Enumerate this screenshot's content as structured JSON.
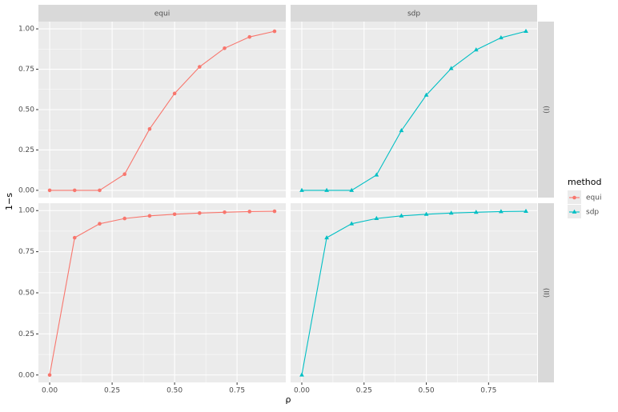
{
  "chart_data": {
    "type": "line",
    "x_label": "ρ",
    "y_label": "1−s",
    "legend_title": "method",
    "x": [
      0,
      0.1,
      0.2,
      0.3,
      0.4,
      0.5,
      0.6,
      0.7,
      0.8,
      0.9
    ],
    "xlim": [
      -0.045,
      0.945
    ],
    "xticks": [
      {
        "value": 0,
        "label": "0.00"
      },
      {
        "value": 0.25,
        "label": "0.25"
      },
      {
        "value": 0.5,
        "label": "0.50"
      },
      {
        "value": 0.75,
        "label": "0.75"
      }
    ],
    "ylim": [
      -0.045,
      1.045
    ],
    "yticks": [
      {
        "value": 0,
        "label": "0.00"
      },
      {
        "value": 0.25,
        "label": "0.25"
      },
      {
        "value": 0.5,
        "label": "0.50"
      },
      {
        "value": 0.75,
        "label": "0.75"
      },
      {
        "value": 1,
        "label": "1.00"
      }
    ],
    "grid": true,
    "series": [
      {
        "name": "equi",
        "color": "#F8766D",
        "marker": "circle"
      },
      {
        "name": "sdp",
        "color": "#00BFC4",
        "marker": "triangle"
      }
    ],
    "rows": [
      {
        "label": "(I)",
        "values": [
          [
            0,
            0,
            0,
            0.1,
            0.38,
            0.6,
            0.765,
            0.88,
            0.95,
            0.985
          ],
          [
            0,
            0,
            0,
            0.095,
            0.37,
            0.59,
            0.755,
            0.87,
            0.945,
            0.985
          ]
        ]
      },
      {
        "label": "(II)",
        "values": [
          [
            0,
            0.835,
            0.92,
            0.952,
            0.968,
            0.978,
            0.985,
            0.99,
            0.994,
            0.996
          ],
          [
            0,
            0.835,
            0.92,
            0.952,
            0.968,
            0.978,
            0.985,
            0.99,
            0.994,
            0.996
          ]
        ]
      }
    ]
  }
}
